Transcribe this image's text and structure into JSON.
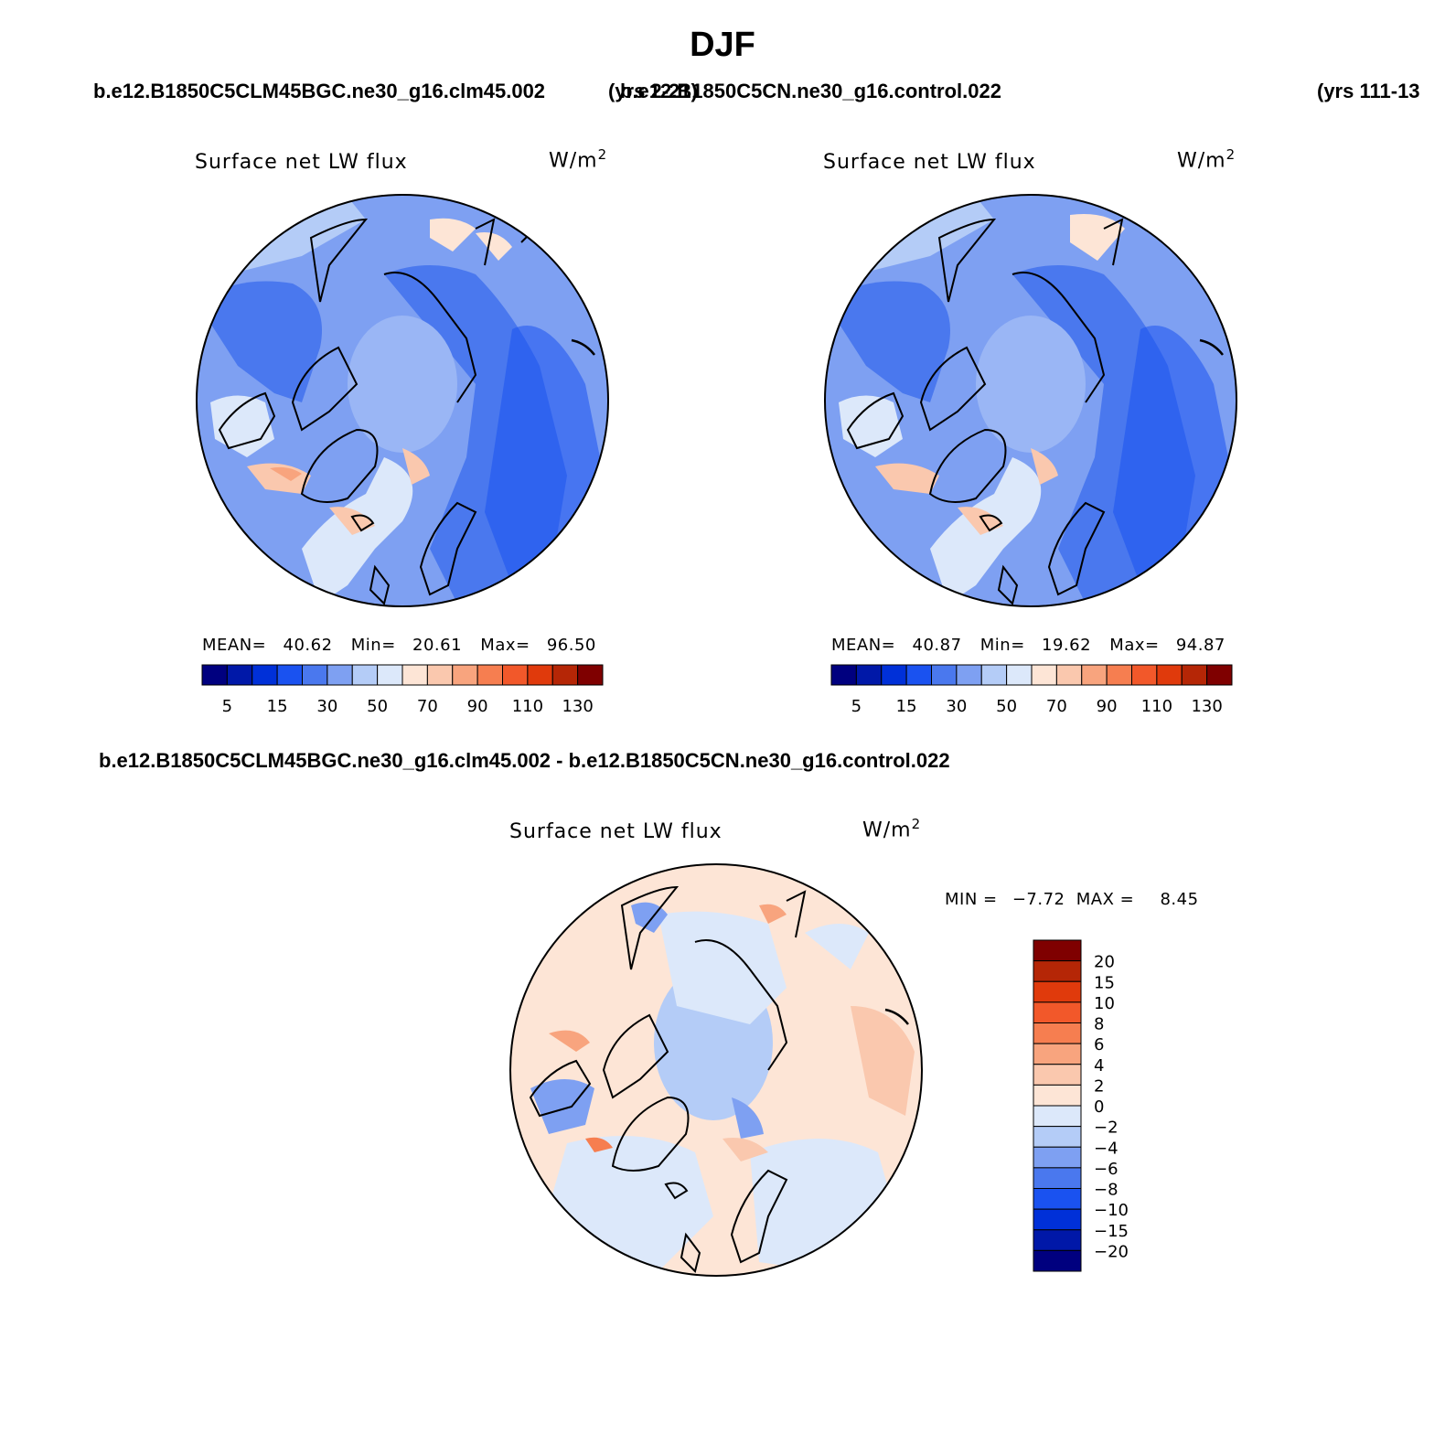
{
  "figure": {
    "season": "DJF",
    "case_a": "b.e12.B1850C5CLM45BGC.ne30_g16.clm45.002",
    "years_a": "(yrs 2-21)",
    "case_b": "b.e12.B1850C5CN.ne30_g16.control.022",
    "years_b": "(yrs 111-13",
    "diff_title": "b.e12.B1850C5CLM45BGC.ne30_g16.clm45.002 - b.e12.B1850C5CN.ne30_g16.control.022"
  },
  "panels": [
    {
      "title": "Surface net LW flux",
      "units": "W/m",
      "units_exp": "2",
      "mean_label": "MEAN=",
      "mean": "40.62",
      "min_label": "Min=",
      "min": "20.61",
      "max_label": "Max=",
      "max": "96.50"
    },
    {
      "title": "Surface net LW flux",
      "units": "W/m",
      "units_exp": "2",
      "mean_label": "MEAN=",
      "mean": "40.87",
      "min_label": "Min=",
      "min": "19.62",
      "max_label": "Max=",
      "max": "94.87"
    },
    {
      "title": "Surface net LW flux",
      "units": "W/m",
      "units_exp": "2",
      "min_label": "MIN =",
      "min": "−7.72",
      "max_label": "MAX =",
      "max": "8.45"
    }
  ],
  "colorbar_main": {
    "colors": [
      "#00007f",
      "#0018a8",
      "#0030d8",
      "#1a52f0",
      "#4a78ee",
      "#7ea0f2",
      "#b4ccf7",
      "#dce8fa",
      "#fde5d6",
      "#fac8ae",
      "#f8a47e",
      "#f67e50",
      "#f2582a",
      "#e03a0c",
      "#b52606",
      "#7f0000"
    ],
    "labels": [
      "5",
      "15",
      "30",
      "50",
      "70",
      "90",
      "110",
      "130"
    ]
  },
  "colorbar_diff": {
    "colors": [
      "#00007f",
      "#0018a8",
      "#0030d8",
      "#1a52f0",
      "#4a78ee",
      "#7ea0f2",
      "#b4ccf7",
      "#dce8fa",
      "#fde5d6",
      "#fac8ae",
      "#f8a47e",
      "#f67e50",
      "#f2582a",
      "#e03a0c",
      "#b52606",
      "#7f0000"
    ],
    "labels": [
      "20",
      "15",
      "10",
      "8",
      "6",
      "4",
      "2",
      "0",
      "−2",
      "−4",
      "−6",
      "−8",
      "−10",
      "−15",
      "−20"
    ]
  }
}
